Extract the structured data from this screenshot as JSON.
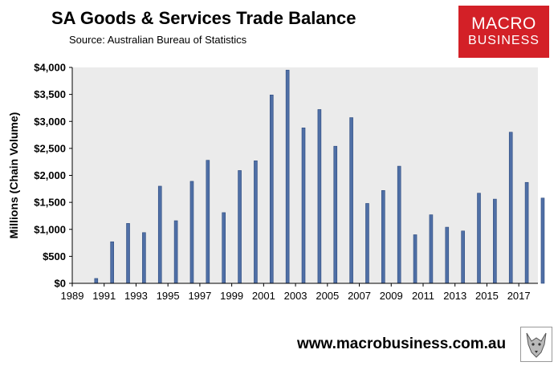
{
  "header": {
    "title": "SA Goods & Services Trade Balance",
    "subtitle": "Source:  Australian Bureau of Statistics"
  },
  "logo": {
    "line1": "MACRO",
    "line2": "BUSINESS",
    "color": "#d32027"
  },
  "footer": {
    "website": "www.macrobusiness.com.au",
    "emblem": "wolf-icon"
  },
  "chart_data": {
    "type": "bar",
    "title": "",
    "ylabel": "Millions (Chain Volume)",
    "xlabel": "",
    "ylim": [
      0,
      4000
    ],
    "yticks": [
      0,
      500,
      1000,
      1500,
      2000,
      2500,
      3000,
      3500,
      4000
    ],
    "ytick_labels": [
      "$0",
      "$500",
      "$1,000",
      "$1,500",
      "$2,000",
      "$2,500",
      "$3,000",
      "$3,500",
      "$4,000"
    ],
    "xlim": [
      1989,
      2018.2
    ],
    "xticks": [
      1989,
      1991,
      1993,
      1995,
      1997,
      1999,
      2001,
      2003,
      2005,
      2007,
      2009,
      2011,
      2013,
      2015,
      2017
    ],
    "xtick_labels": [
      "1989",
      "1991",
      "1993",
      "1995",
      "1997",
      "1999",
      "2001",
      "2003",
      "2005",
      "2007",
      "2009",
      "2011",
      "2013",
      "2015",
      "2017"
    ],
    "grid": false,
    "plot_background": "#ebebeb",
    "bar_color": "#4f6fa6",
    "categories": [
      "1990",
      "1991",
      "1992",
      "1993",
      "1994",
      "1995",
      "1996",
      "1997",
      "1998",
      "1999",
      "2000",
      "2001",
      "2002",
      "2003",
      "2004",
      "2005",
      "2006",
      "2007",
      "2008",
      "2009",
      "2010",
      "2011",
      "2012",
      "2013",
      "2014",
      "2015",
      "2016",
      "2017",
      "2018"
    ],
    "values": [
      90,
      770,
      1110,
      940,
      1800,
      1160,
      1890,
      2280,
      1310,
      2090,
      2270,
      3490,
      3950,
      2880,
      3220,
      2540,
      3070,
      1480,
      1720,
      2170,
      900,
      1270,
      1040,
      970,
      1670,
      1560,
      2800,
      1870,
      1580
    ]
  }
}
